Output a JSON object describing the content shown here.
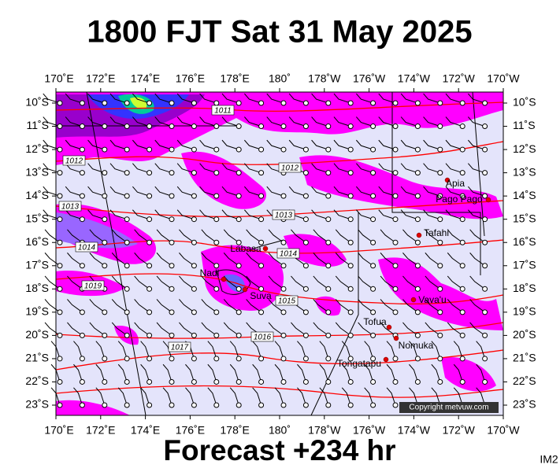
{
  "header": {
    "title": "1800 FJT Sat 31 May 2025"
  },
  "footer": {
    "forecast": "Forecast +234 hr",
    "image_id": "IM2"
  },
  "map": {
    "lon_labels": [
      "170˚E",
      "172˚E",
      "174˚E",
      "176˚E",
      "178˚E",
      "180˚",
      "178˚W",
      "176˚W",
      "174˚W",
      "172˚W",
      "170˚W"
    ],
    "lat_labels": [
      "10˚S",
      "11˚S",
      "12˚S",
      "13˚S",
      "14˚S",
      "15˚S",
      "16˚S",
      "17˚S",
      "18˚S",
      "19˚S",
      "20˚S",
      "21˚S",
      "22˚S",
      "23˚S"
    ],
    "isobar_labels": [
      "1011",
      "1012",
      "1012",
      "1013",
      "1013",
      "1014",
      "1014",
      "1015",
      "1016",
      "1017",
      "1019"
    ],
    "places": [
      "Apia",
      "Pago Pago",
      "Tafahi",
      "Labasa",
      "Nadi",
      "Suva",
      "Vava'u",
      "Tofua",
      "Nomuka",
      "Tongatapu"
    ],
    "copyright": "Copyright metvuw.com"
  }
}
